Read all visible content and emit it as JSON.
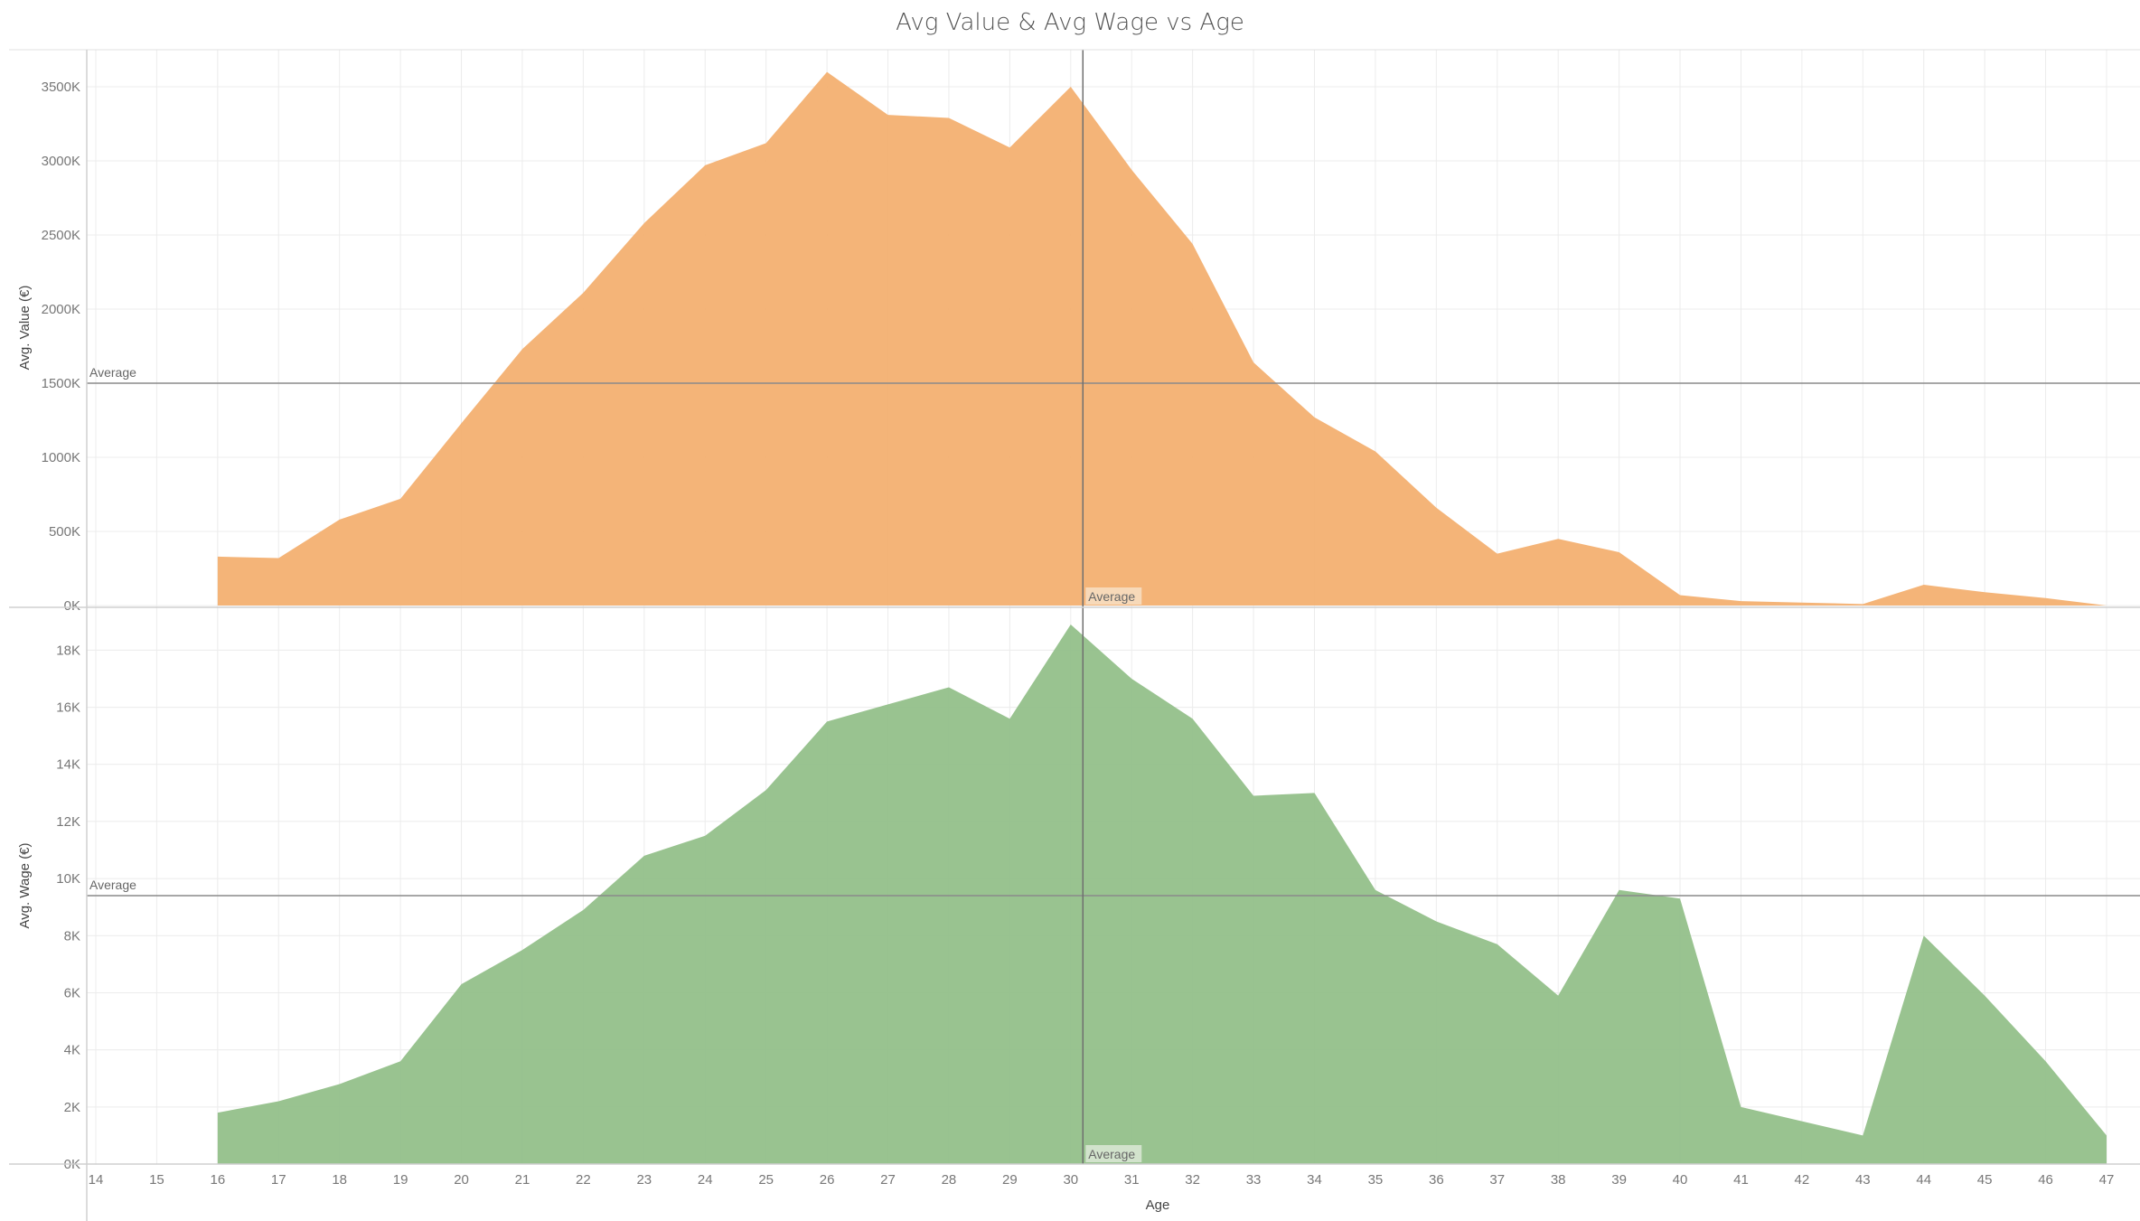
{
  "title": "Avg Value & Avg Wage vs Age",
  "colors": {
    "value_area": "#f3b071",
    "wage_area": "#93c08a",
    "grid": "#ececec",
    "ref_line": "#8a8a8a",
    "label_bg": "#f7ddc0",
    "label_bg2": "#d8e7d3"
  },
  "chart_data": {
    "type": "area",
    "title": "Avg Value & Avg Wage vs Age",
    "xlabel": "Age",
    "x_ticks": [
      14,
      15,
      16,
      17,
      18,
      19,
      20,
      21,
      22,
      23,
      24,
      25,
      26,
      27,
      28,
      29,
      30,
      31,
      32,
      33,
      34,
      35,
      36,
      37,
      38,
      39,
      40,
      41,
      42,
      43,
      44,
      45,
      46,
      47
    ],
    "xlim": [
      14,
      47
    ],
    "reference_line_x": {
      "value": 30.2,
      "label": "Average"
    },
    "panels": [
      {
        "name": "value",
        "ylabel": "Avg. Value (€)",
        "ylim": [
          0,
          3750
        ],
        "y_ticks": [
          0,
          500,
          1000,
          1500,
          2000,
          2500,
          3000,
          3500
        ],
        "y_tick_labels": [
          "0K",
          "500K",
          "1000K",
          "1500K",
          "2000K",
          "2500K",
          "3000K",
          "3500K"
        ],
        "reference_line_y": {
          "value": 1500,
          "label": "Average"
        },
        "x": [
          16,
          17,
          18,
          19,
          20,
          21,
          22,
          23,
          24,
          25,
          26,
          27,
          28,
          29,
          30,
          31,
          32,
          33,
          34,
          35,
          36,
          37,
          38,
          39,
          40,
          41,
          42,
          43,
          44,
          45,
          46,
          47
        ],
        "values": [
          330,
          320,
          580,
          720,
          1230,
          1730,
          2110,
          2580,
          2970,
          3120,
          3600,
          3310,
          3290,
          3090,
          3500,
          2940,
          2440,
          1640,
          1270,
          1040,
          660,
          350,
          450,
          360,
          70,
          30,
          20,
          10,
          140,
          90,
          50,
          0
        ]
      },
      {
        "name": "wage",
        "ylabel": "Avg. Wage (€)",
        "ylim": [
          0,
          19500
        ],
        "y_ticks": [
          0,
          2000,
          4000,
          6000,
          8000,
          10000,
          12000,
          14000,
          16000,
          18000
        ],
        "y_tick_labels": [
          "0K",
          "2K",
          "4K",
          "6K",
          "8K",
          "10K",
          "12K",
          "14K",
          "16K",
          "18K"
        ],
        "reference_line_y": {
          "value": 9400,
          "label": "Average"
        },
        "x": [
          16,
          17,
          18,
          19,
          20,
          21,
          22,
          23,
          24,
          25,
          26,
          27,
          28,
          29,
          30,
          31,
          32,
          33,
          34,
          35,
          36,
          37,
          38,
          39,
          40,
          41,
          42,
          43,
          44,
          45,
          46,
          47
        ],
        "values": [
          1800,
          2200,
          2800,
          3600,
          6300,
          7500,
          8900,
          10800,
          11500,
          13100,
          15500,
          16100,
          16700,
          15600,
          18900,
          17000,
          15600,
          12900,
          13000,
          9600,
          8500,
          7700,
          5900,
          9600,
          9300,
          2000,
          1500,
          1000,
          8000,
          5900,
          3600,
          1000
        ]
      }
    ]
  }
}
